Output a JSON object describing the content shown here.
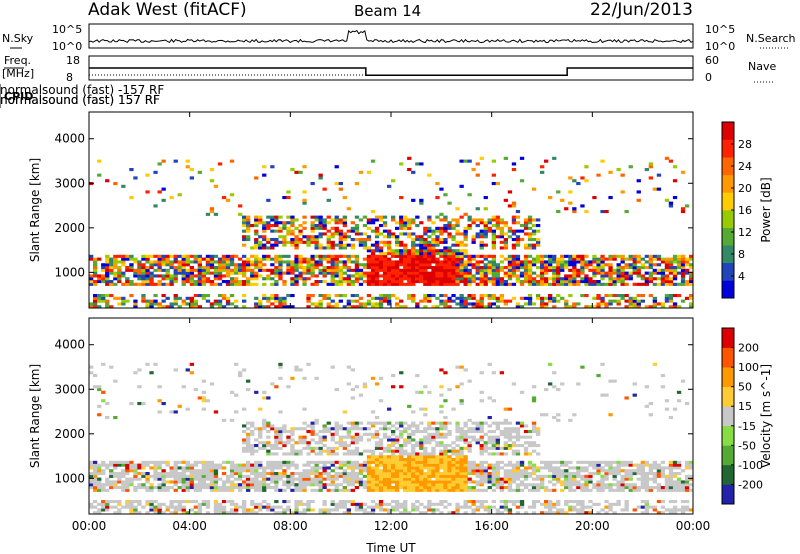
{
  "header": {
    "station": "Adak West (fitACF)",
    "beam": "Beam 14",
    "date": "22/Jun/2013"
  },
  "labels": {
    "nsky": "N.Sky",
    "freq": "Freq.",
    "mhz": "[MHz]",
    "cpid": "CPID",
    "nsearch": "N.Search",
    "nave": "Nave"
  },
  "cpid_segments": [
    {
      "label": "normalsound (fast) 157 RF",
      "start_hour": 0
    },
    {
      "label": "normalsound (fast) -157 RF",
      "start_hour": 6
    },
    {
      "label": "normalsound (fast) 157 RF",
      "start_hour": 18
    }
  ],
  "chart_data": [
    {
      "type": "line",
      "name": "noise",
      "left_axis": {
        "label": "N.Sky",
        "ticks": [
          "10^5",
          "10^0"
        ]
      },
      "right_axis": {
        "label": "N.Search",
        "ticks": [
          "10^5",
          "10^0"
        ]
      }
    },
    {
      "type": "line",
      "name": "freq-nave",
      "left_axis": {
        "label": "Freq. [MHz]",
        "ticks": [
          18,
          8
        ]
      },
      "right_axis": {
        "label": "Nave",
        "ticks": [
          60,
          0
        ]
      },
      "freq_steps": [
        {
          "start": 0,
          "end": 11,
          "value": 13
        },
        {
          "start": 11,
          "end": 19,
          "value": 10
        },
        {
          "start": 19,
          "end": 24,
          "value": 13
        }
      ]
    },
    {
      "type": "heatmap",
      "name": "power",
      "ylabel": "Slant Range [km]",
      "yticks": [
        1000,
        2000,
        3000,
        4000
      ],
      "ylim": [
        200,
        4600
      ],
      "xlim": [
        0,
        24
      ],
      "colorbar": {
        "label": "Power [dB]",
        "ticks": [
          "28",
          "24",
          "20",
          "16",
          "12",
          "8",
          "4"
        ],
        "colors": [
          "#0000dd",
          "#2244bb",
          "#338866",
          "#55aa33",
          "#99cc00",
          "#ffcc00",
          "#ff9900",
          "#ff6600",
          "#ff2200",
          "#dd0000"
        ]
      }
    },
    {
      "type": "heatmap",
      "name": "velocity",
      "ylabel": "Slant Range [km]",
      "yticks": [
        1000,
        2000,
        3000,
        4000
      ],
      "ylim": [
        200,
        4600
      ],
      "xlim": [
        0,
        24
      ],
      "xlabel": "Time UT",
      "xticks": [
        "00:00",
        "04:00",
        "08:00",
        "12:00",
        "16:00",
        "20:00",
        "00:00"
      ],
      "colorbar": {
        "label": "Velocity [m s^-1]",
        "ticks": [
          "200",
          "100",
          "50",
          "15",
          "-15",
          "-50",
          "-100",
          "-200"
        ],
        "colors": [
          "#2222aa",
          "#226633",
          "#55aa33",
          "#88dd44",
          "#c8c8c8",
          "#ffcc33",
          "#ff9900",
          "#ff5500",
          "#dd0000"
        ]
      }
    }
  ]
}
